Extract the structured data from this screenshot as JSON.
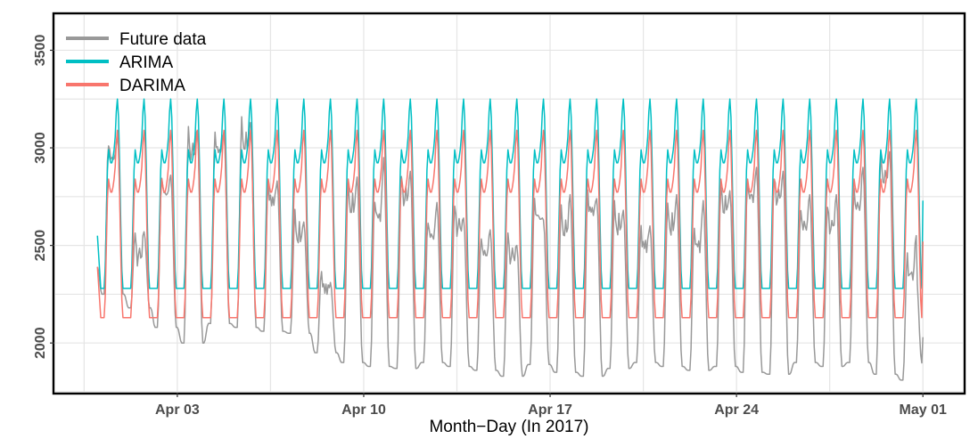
{
  "chart_data": {
    "type": "line",
    "title": "",
    "xlabel": "Month−Day (In 2017)",
    "ylabel": "",
    "x_unit": "hour",
    "x_start": "2017-03-31 00:00",
    "x_end": "2017-05-01 00:00",
    "xlim": [
      "2017-03-29 10:00",
      "2017-05-02 12:00"
    ],
    "ylim": [
      1750,
      3680
    ],
    "x_ticks": [
      {
        "date": "2017-04-03",
        "label": "Apr 03"
      },
      {
        "date": "2017-04-10",
        "label": "Apr 10"
      },
      {
        "date": "2017-04-17",
        "label": "Apr 17"
      },
      {
        "date": "2017-04-24",
        "label": "Apr 24"
      },
      {
        "date": "2017-05-01",
        "label": "May 01"
      }
    ],
    "y_ticks": [
      2000,
      2500,
      3000,
      3500
    ],
    "grid": true,
    "legend_position": "top-left",
    "series": [
      {
        "name": "Future data",
        "color": "#999999",
        "daily_peak_morning": [
          3050,
          2550,
          2870,
          3080,
          3090,
          3120,
          2830,
          2650,
          2380,
          2800,
          2750,
          2850,
          2650,
          2700,
          2560,
          2550,
          2750,
          2680,
          2780,
          2700,
          2600,
          2700,
          2600,
          2800,
          2850,
          2850,
          2700,
          2700,
          2800,
          2950,
          2450
        ],
        "daily_peak_evening": [
          3060,
          2570,
          2860,
          3090,
          3080,
          3130,
          2830,
          2620,
          2310,
          2850,
          2950,
          2880,
          2720,
          2640,
          2580,
          2500,
          2630,
          2760,
          2740,
          2680,
          2600,
          2760,
          2730,
          2780,
          2900,
          2880,
          2760,
          2760,
          2900,
          2980,
          2550
        ],
        "daily_trough": [
          2250,
          2180,
          2080,
          2000,
          2100,
          2080,
          2060,
          2050,
          1950,
          1900,
          1880,
          1870,
          1900,
          1880,
          1860,
          1830,
          1890,
          1850,
          1830,
          1870,
          1900,
          1880,
          1860,
          1880,
          1850,
          1840,
          1900,
          1880,
          1900,
          1840,
          1810
        ],
        "start_value": 2390,
        "end_value": 2030
      },
      {
        "name": "ARIMA",
        "color": "#00BFC4",
        "daily_peak_high": 3250,
        "daily_peak_low": 2990,
        "daily_trough": 2280,
        "start_value": 2550,
        "end_value": 2730
      },
      {
        "name": "DARIMA",
        "color": "#F8766D",
        "daily_peak_high": 3090,
        "daily_peak_low": 2840,
        "daily_trough": 2130,
        "start_value": 2390,
        "end_value": 2520
      }
    ]
  }
}
